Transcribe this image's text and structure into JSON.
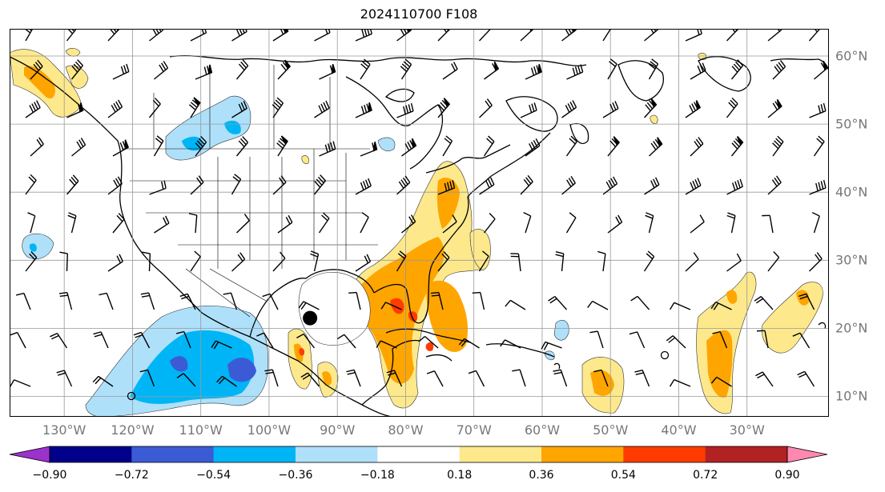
{
  "title": "2024110700 F108",
  "map": {
    "projection": "PlateCarree",
    "lon_range": [
      -138,
      -18
    ],
    "lat_range": [
      7,
      64
    ],
    "lat_ticks": [
      {
        "value": 60,
        "label": "60°N"
      },
      {
        "value": 50,
        "label": "50°N"
      },
      {
        "value": 40,
        "label": "40°N"
      },
      {
        "value": 30,
        "label": "30°N"
      },
      {
        "value": 20,
        "label": "20°N"
      },
      {
        "value": 10,
        "label": "10°N"
      }
    ],
    "lon_ticks": [
      {
        "value": -130,
        "label": "130°W"
      },
      {
        "value": -120,
        "label": "120°W"
      },
      {
        "value": -110,
        "label": "110°W"
      },
      {
        "value": -100,
        "label": "100°W"
      },
      {
        "value": -90,
        "label": "90°W"
      },
      {
        "value": -80,
        "label": "80°W"
      },
      {
        "value": -70,
        "label": "70°W"
      },
      {
        "value": -60,
        "label": "60°W"
      },
      {
        "value": -50,
        "label": "50°W"
      },
      {
        "value": -40,
        "label": "40°W"
      },
      {
        "value": -30,
        "label": "30°W"
      }
    ],
    "grid": true,
    "storm_marker": {
      "lon": -94,
      "lat": 21.5,
      "color": "#000000"
    }
  },
  "colorbar": {
    "levels": [
      "−0.90",
      "−0.72",
      "−0.54",
      "−0.36",
      "−0.18",
      "0.18",
      "0.36",
      "0.54",
      "0.72",
      "0.90"
    ],
    "colors": [
      "#9b32cc",
      "#00008b",
      "#3b5bd6",
      "#00b5f5",
      "#aee0fa",
      "#ffffff",
      "#fde98c",
      "#ffa500",
      "#ff3b00",
      "#b22222",
      "#ff88b0"
    ],
    "extend": "both"
  }
}
